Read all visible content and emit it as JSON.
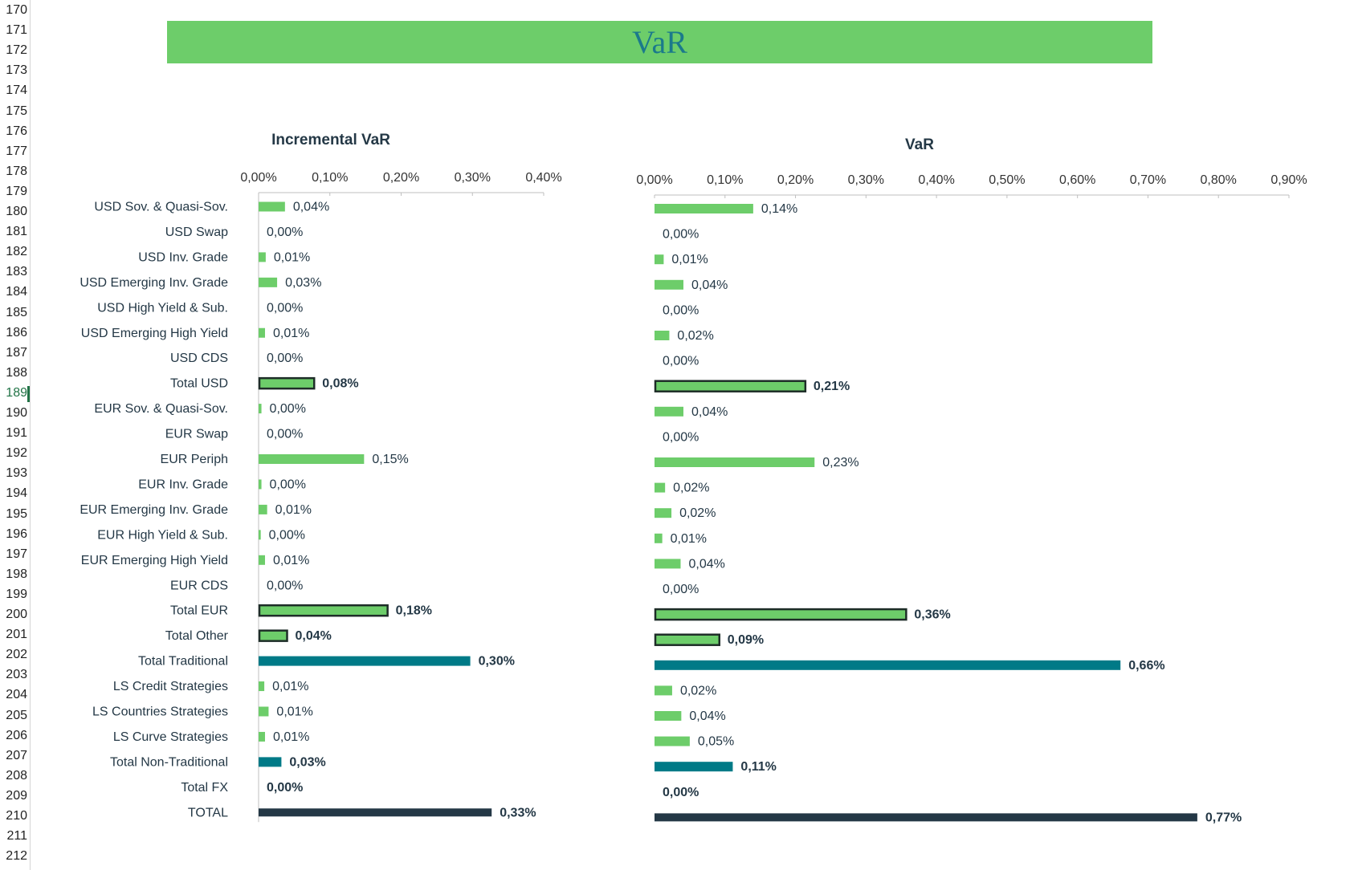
{
  "row_numbers": [
    "170",
    "171",
    "172",
    "173",
    "174",
    "175",
    "176",
    "177",
    "178",
    "179",
    "180",
    "181",
    "182",
    "183",
    "184",
    "185",
    "186",
    "187",
    "188",
    "189",
    "190",
    "191",
    "192",
    "193",
    "194",
    "195",
    "196",
    "197",
    "198",
    "199",
    "200",
    "201",
    "202",
    "203",
    "204",
    "205",
    "206",
    "207",
    "208",
    "209",
    "210",
    "211",
    "212"
  ],
  "selected_row": "189",
  "banner": {
    "title": "VaR"
  },
  "colors": {
    "green": "#6dcd6a",
    "teal": "#007a87",
    "navy": "#243846",
    "outline": "#1e2d28"
  },
  "chart_data": [
    {
      "type": "bar",
      "orientation": "horizontal",
      "title": "Incremental VaR",
      "xlim": [
        0,
        0.4
      ],
      "ticks": [
        "0,00%",
        "0,10%",
        "0,20%",
        "0,30%",
        "0,40%"
      ],
      "categories": [
        "USD Sov. & Quasi-Sov.",
        "USD Swap",
        "USD Inv. Grade",
        "USD Emerging Inv. Grade",
        "USD High Yield & Sub.",
        "USD Emerging High Yield",
        "USD CDS",
        "Total USD",
        "EUR Sov. & Quasi-Sov.",
        "EUR Swap",
        "EUR Periph",
        "EUR Inv. Grade",
        "EUR Emerging Inv. Grade",
        "EUR High Yield & Sub.",
        "EUR Emerging High Yield",
        "EUR CDS",
        "Total EUR",
        "Total Other",
        "Total Traditional",
        "LS Credit Strategies",
        "LS Countries Strategies",
        "LS Curve Strategies",
        "Total Non-Traditional",
        "Total FX",
        "TOTAL"
      ],
      "values": [
        0.037,
        0,
        0.01,
        0.026,
        0,
        0.009,
        0,
        0.078,
        0.004,
        0,
        0.148,
        0.004,
        0.012,
        0.003,
        0.009,
        0,
        0.181,
        0.04,
        0.297,
        0.008,
        0.014,
        0.009,
        0.032,
        0,
        0.327
      ],
      "labels": [
        "0,04%",
        "0,00%",
        "0,01%",
        "0,03%",
        "0,00%",
        "0,01%",
        "0,00%",
        "0,08%",
        "0,00%",
        "0,00%",
        "0,15%",
        "0,00%",
        "0,01%",
        "0,00%",
        "0,01%",
        "0,00%",
        "0,18%",
        "0,04%",
        "0,30%",
        "0,01%",
        "0,01%",
        "0,01%",
        "0,03%",
        "0,00%",
        "0,33%"
      ],
      "styles": [
        "green",
        "green",
        "green",
        "green",
        "green",
        "green",
        "green",
        "green-outline",
        "green",
        "green",
        "green",
        "green",
        "green",
        "green",
        "green",
        "green",
        "green-outline",
        "green-outline",
        "teal",
        "green",
        "green",
        "green",
        "teal",
        "teal",
        "navy"
      ]
    },
    {
      "type": "bar",
      "orientation": "horizontal",
      "title": "VaR",
      "xlim": [
        0,
        0.9
      ],
      "ticks": [
        "0,00%",
        "0,10%",
        "0,20%",
        "0,30%",
        "0,40%",
        "0,50%",
        "0,60%",
        "0,70%",
        "0,80%",
        "0,90%"
      ],
      "values": [
        0.14,
        0,
        0.013,
        0.041,
        0,
        0.021,
        0,
        0.214,
        0.041,
        0,
        0.227,
        0.015,
        0.024,
        0.011,
        0.037,
        0,
        0.357,
        0.092,
        0.661,
        0.025,
        0.038,
        0.05,
        0.111,
        0,
        0.77
      ],
      "labels": [
        "0,14%",
        "0,00%",
        "0,01%",
        "0,04%",
        "0,00%",
        "0,02%",
        "0,00%",
        "0,21%",
        "0,04%",
        "0,00%",
        "0,23%",
        "0,02%",
        "0,02%",
        "0,01%",
        "0,04%",
        "0,00%",
        "0,36%",
        "0,09%",
        "0,66%",
        "0,02%",
        "0,04%",
        "0,05%",
        "0,11%",
        "0,00%",
        "0,77%"
      ],
      "styles": [
        "green",
        "green",
        "green",
        "green",
        "green",
        "green",
        "green",
        "green-outline",
        "green",
        "green",
        "green",
        "green",
        "green",
        "green",
        "green",
        "green",
        "green-outline",
        "green-outline",
        "teal",
        "green",
        "green",
        "green",
        "teal",
        "teal",
        "navy"
      ]
    }
  ]
}
